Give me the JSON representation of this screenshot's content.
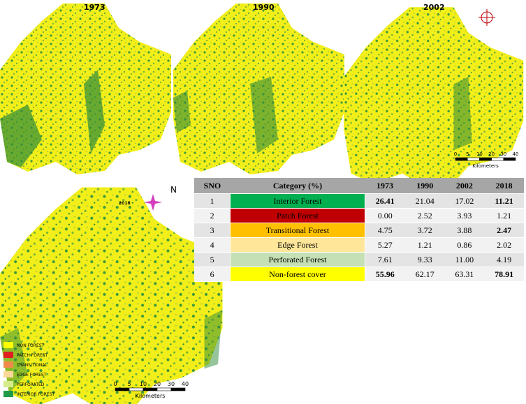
{
  "maps": [
    {
      "year": "1973"
    },
    {
      "year": "1990"
    },
    {
      "year": "2002"
    },
    {
      "year": "2018"
    }
  ],
  "compass_label": "N",
  "scale_bars": [
    {
      "ticks": [
        "0",
        "5",
        "10",
        "20",
        "30",
        "40"
      ],
      "unit": "Kilometers"
    },
    {
      "ticks": [
        "0",
        "5",
        "10",
        "20",
        "30",
        "40"
      ],
      "unit": "Kilometers"
    }
  ],
  "legend": [
    "NON FOREST",
    "PATCH FOREST",
    "TRANSITIONAL",
    "EDGE FOREST",
    "PERFORATED",
    "INTERIOR FOREST"
  ],
  "table": {
    "header": [
      "SNO",
      "Category (%)",
      "1973",
      "1990",
      "2002",
      "2018"
    ],
    "rows": [
      [
        "1",
        "Interior Forest",
        "26.41",
        "21.04",
        "17.02",
        "11.21"
      ],
      [
        "2",
        "Patch Forest",
        "0.00",
        "2.52",
        "3.93",
        "1.21"
      ],
      [
        "3",
        "Transitional Forest",
        "4.75",
        "3.72",
        "3.88",
        "2.47"
      ],
      [
        "4",
        "Edge Forest",
        "5.27",
        "1.21",
        "0.86",
        "2.02"
      ],
      [
        "5",
        "Perforated Forest",
        "7.61",
        "9.33",
        "11.00",
        "4.19"
      ],
      [
        "6",
        "Non-forest cover",
        "55.96",
        "62.17",
        "63.31",
        "78.91"
      ]
    ]
  }
}
